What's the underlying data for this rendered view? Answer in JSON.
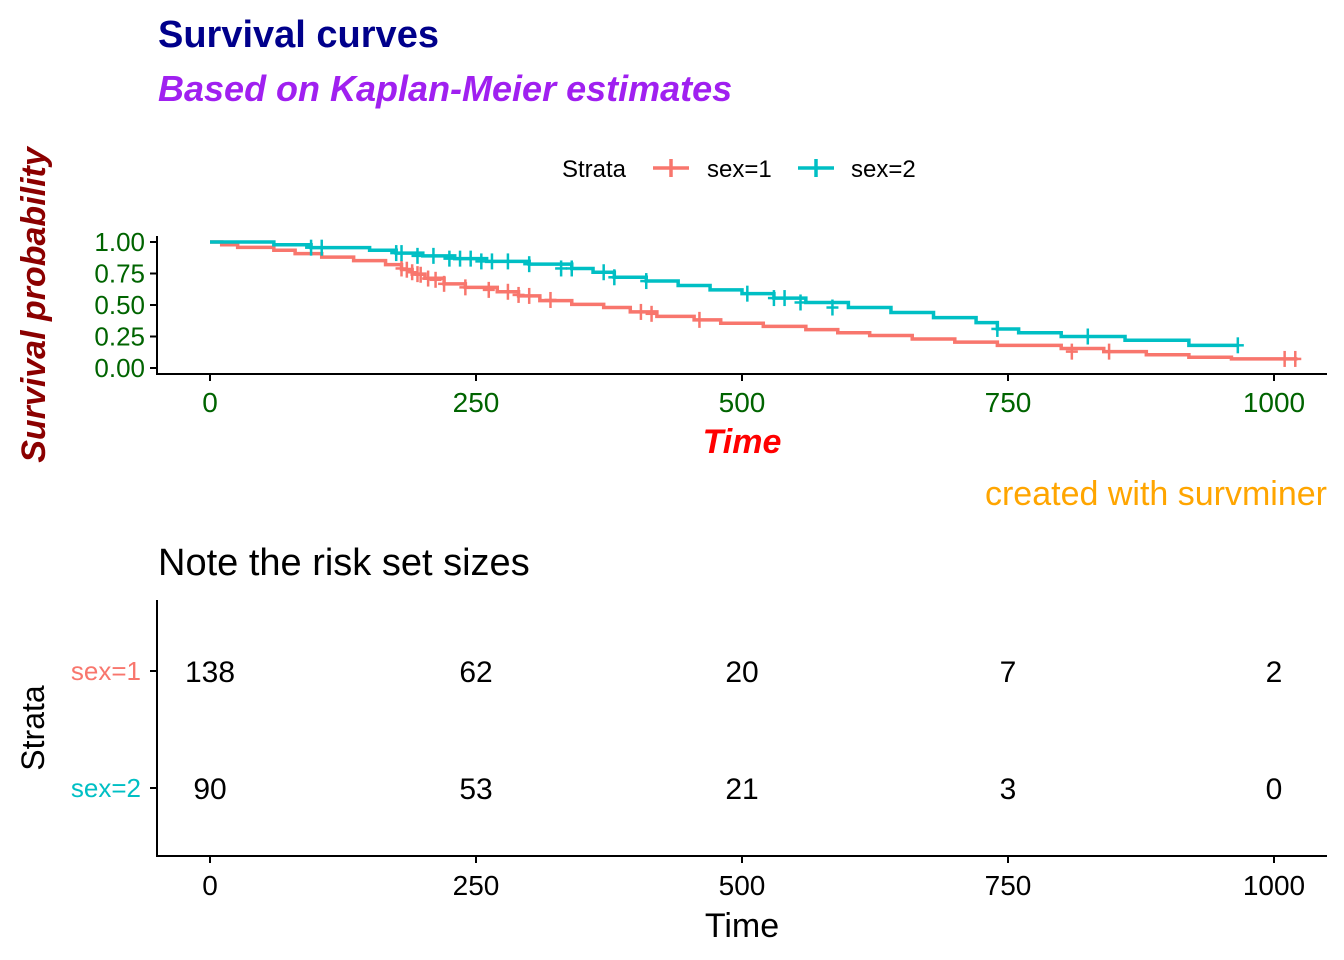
{
  "colors": {
    "title": "#00008B",
    "subtitle": "#A020F0",
    "ylabel": "#8B0000",
    "xlabel": "#FF0000",
    "tick_text": "#006400",
    "caption": "#FFA500",
    "sex1": "#F8766D",
    "sex2": "#00BFC4",
    "axis": "#000000"
  },
  "chart_data": [
    {
      "type": "line",
      "subtype": "kaplan-meier",
      "title": "Survival curves",
      "subtitle": "Based on Kaplan-Meier estimates",
      "xlabel": "Time",
      "ylabel": "Survival probability",
      "caption": "created with survminer",
      "xlim": [
        0,
        1025
      ],
      "ylim": [
        0,
        1
      ],
      "x_ticks": [
        "0",
        "250",
        "500",
        "750",
        "1000"
      ],
      "y_ticks": [
        "0.00",
        "0.25",
        "0.50",
        "0.75",
        "1.00"
      ],
      "legend": {
        "title": "Strata",
        "position": "top",
        "entries": [
          "sex=1",
          "sex=2"
        ]
      },
      "series": [
        {
          "name": "sex=1",
          "color_key": "sex1",
          "steps": [
            [
              0,
              1.0
            ],
            [
              11,
              0.978
            ],
            [
              26,
              0.957
            ],
            [
              60,
              0.935
            ],
            [
              80,
              0.908
            ],
            [
              105,
              0.88
            ],
            [
              135,
              0.852
            ],
            [
              165,
              0.82
            ],
            [
              180,
              0.782
            ],
            [
              190,
              0.745
            ],
            [
              202,
              0.712
            ],
            [
              220,
              0.668
            ],
            [
              240,
              0.64
            ],
            [
              270,
              0.605
            ],
            [
              290,
              0.572
            ],
            [
              310,
              0.535
            ],
            [
              340,
              0.505
            ],
            [
              370,
              0.48
            ],
            [
              395,
              0.445
            ],
            [
              420,
              0.41
            ],
            [
              455,
              0.382
            ],
            [
              480,
              0.355
            ],
            [
              520,
              0.33
            ],
            [
              560,
              0.305
            ],
            [
              590,
              0.28
            ],
            [
              620,
              0.258
            ],
            [
              660,
              0.23
            ],
            [
              700,
              0.205
            ],
            [
              740,
              0.18
            ],
            [
              800,
              0.155
            ],
            [
              840,
              0.13
            ],
            [
              880,
              0.105
            ],
            [
              920,
              0.085
            ],
            [
              960,
              0.072
            ],
            [
              1022,
              0.072
            ]
          ],
          "censors": [
            [
              180,
              0.79
            ],
            [
              185,
              0.78
            ],
            [
              190,
              0.76
            ],
            [
              195,
              0.745
            ],
            [
              198,
              0.74
            ],
            [
              205,
              0.71
            ],
            [
              212,
              0.7
            ],
            [
              220,
              0.668
            ],
            [
              240,
              0.64
            ],
            [
              262,
              0.62
            ],
            [
              280,
              0.605
            ],
            [
              290,
              0.58
            ],
            [
              300,
              0.572
            ],
            [
              320,
              0.54
            ],
            [
              405,
              0.445
            ],
            [
              415,
              0.43
            ],
            [
              460,
              0.382
            ],
            [
              810,
              0.13
            ],
            [
              845,
              0.13
            ],
            [
              1010,
              0.072
            ],
            [
              1020,
              0.072
            ]
          ]
        },
        {
          "name": "sex=2",
          "color_key": "sex2",
          "steps": [
            [
              0,
              1.0
            ],
            [
              60,
              0.978
            ],
            [
              95,
              0.955
            ],
            [
              150,
              0.935
            ],
            [
              175,
              0.912
            ],
            [
              200,
              0.89
            ],
            [
              230,
              0.868
            ],
            [
              260,
              0.846
            ],
            [
              300,
              0.824
            ],
            [
              340,
              0.79
            ],
            [
              360,
              0.76
            ],
            [
              380,
              0.72
            ],
            [
              410,
              0.69
            ],
            [
              440,
              0.655
            ],
            [
              470,
              0.62
            ],
            [
              500,
              0.59
            ],
            [
              530,
              0.555
            ],
            [
              560,
              0.52
            ],
            [
              600,
              0.48
            ],
            [
              640,
              0.44
            ],
            [
              680,
              0.4
            ],
            [
              720,
              0.36
            ],
            [
              740,
              0.31
            ],
            [
              760,
              0.28
            ],
            [
              800,
              0.25
            ],
            [
              860,
              0.22
            ],
            [
              920,
              0.18
            ],
            [
              966,
              0.18
            ]
          ],
          "censors": [
            [
              95,
              0.955
            ],
            [
              105,
              0.955
            ],
            [
              175,
              0.912
            ],
            [
              180,
              0.912
            ],
            [
              195,
              0.89
            ],
            [
              210,
              0.89
            ],
            [
              225,
              0.868
            ],
            [
              235,
              0.868
            ],
            [
              245,
              0.868
            ],
            [
              255,
              0.846
            ],
            [
              265,
              0.846
            ],
            [
              280,
              0.846
            ],
            [
              300,
              0.824
            ],
            [
              330,
              0.79
            ],
            [
              340,
              0.79
            ],
            [
              370,
              0.76
            ],
            [
              380,
              0.72
            ],
            [
              410,
              0.69
            ],
            [
              505,
              0.59
            ],
            [
              530,
              0.555
            ],
            [
              540,
              0.555
            ],
            [
              555,
              0.52
            ],
            [
              585,
              0.48
            ],
            [
              740,
              0.31
            ],
            [
              825,
              0.25
            ],
            [
              966,
              0.18
            ]
          ]
        }
      ]
    },
    {
      "type": "table",
      "title": "Note the risk set sizes",
      "xlabel": "Time",
      "ylabel": "Strata",
      "xlim": [
        0,
        1025
      ],
      "x_ticks": [
        "0",
        "250",
        "500",
        "750",
        "1000"
      ],
      "times": [
        0,
        250,
        500,
        750,
        1000
      ],
      "rows": [
        {
          "label": "sex=1",
          "color_key": "sex1",
          "values": [
            "138",
            "62",
            "20",
            "7",
            "2"
          ]
        },
        {
          "label": "sex=2",
          "color_key": "sex2",
          "values": [
            "90",
            "53",
            "21",
            "3",
            "0"
          ]
        }
      ]
    }
  ]
}
